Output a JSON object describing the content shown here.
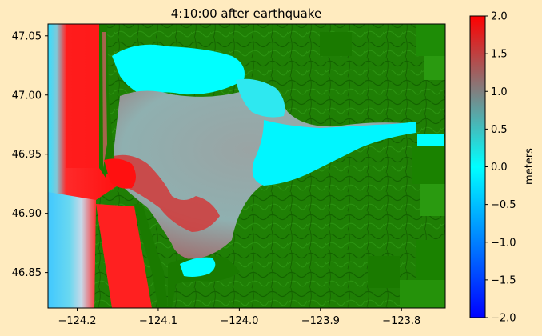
{
  "chart_data": {
    "type": "heatmap",
    "title": "4:10:00 after earthquake",
    "xlabel": "",
    "ylabel": "",
    "xlim": [
      -124.236,
      -123.746
    ],
    "ylim": [
      46.82,
      47.06
    ],
    "xticks": [
      -124.2,
      -124.1,
      -124.0,
      -123.9,
      -123.8
    ],
    "xtick_labels": [
      "−124.2",
      "−124.1",
      "−124.0",
      "−123.9",
      "−123.8"
    ],
    "yticks": [
      46.85,
      46.9,
      46.95,
      47.0,
      47.05
    ],
    "ytick_labels": [
      "46.85",
      "46.90",
      "46.95",
      "47.00",
      "47.05"
    ],
    "colorbar": {
      "label": "meters",
      "range": [
        -2.0,
        2.0
      ],
      "ticks": [
        -2.0,
        -1.5,
        -1.0,
        -0.5,
        0.0,
        0.5,
        1.0,
        1.5,
        2.0
      ],
      "tick_labels": [
        "−2.0",
        "−1.5",
        "−1.0",
        "−0.5",
        "0.0",
        "0.5",
        "1.0",
        "1.5",
        "2.0"
      ],
      "colors": [
        "#0000ff",
        "#00ffff",
        "#808080",
        "#ff0000"
      ]
    },
    "colors": {
      "land": "#1a7a00",
      "land_dark": "#0f5e00",
      "land_light": "#2e9a10",
      "water_high": "#ff0000",
      "water_zero": "#00ffff",
      "water_mid": "#8a9a9a"
    },
    "grid": false
  }
}
